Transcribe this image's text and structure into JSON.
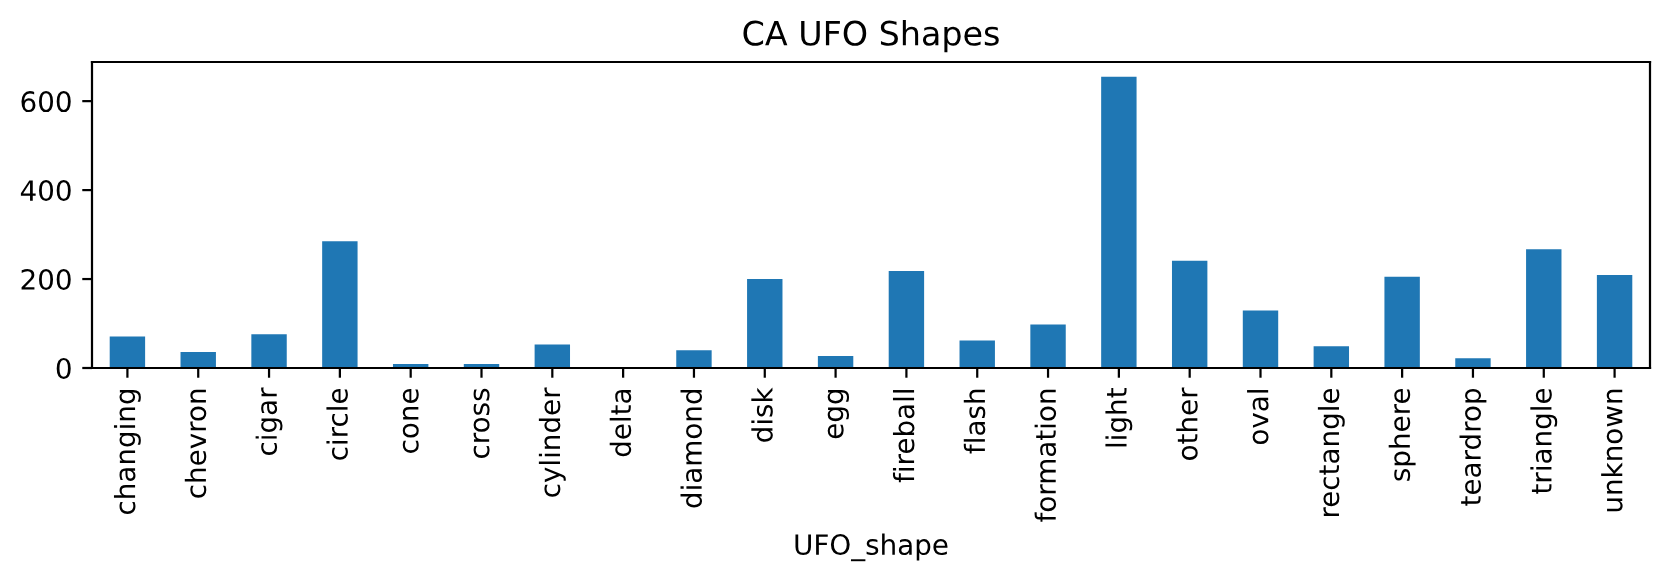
{
  "chart_data": {
    "type": "bar",
    "title": "CA UFO Shapes",
    "xlabel": "UFO_shape",
    "categories": [
      "changing",
      "chevron",
      "cigar",
      "circle",
      "cone",
      "cross",
      "cylinder",
      "delta",
      "diamond",
      "disk",
      "egg",
      "fireball",
      "flash",
      "formation",
      "light",
      "other",
      "oval",
      "rectangle",
      "sphere",
      "teardrop",
      "triangle",
      "unknown"
    ],
    "values": [
      71,
      36,
      76,
      285,
      9,
      9,
      53,
      null,
      40,
      200,
      27,
      218,
      62,
      98,
      655,
      241,
      129,
      49,
      205,
      22,
      267,
      209
    ],
    "color": "#1f77b4",
    "ylim": [
      0,
      688
    ],
    "yticks": [
      0,
      200,
      400,
      600
    ],
    "grid": false,
    "legend": false
  }
}
